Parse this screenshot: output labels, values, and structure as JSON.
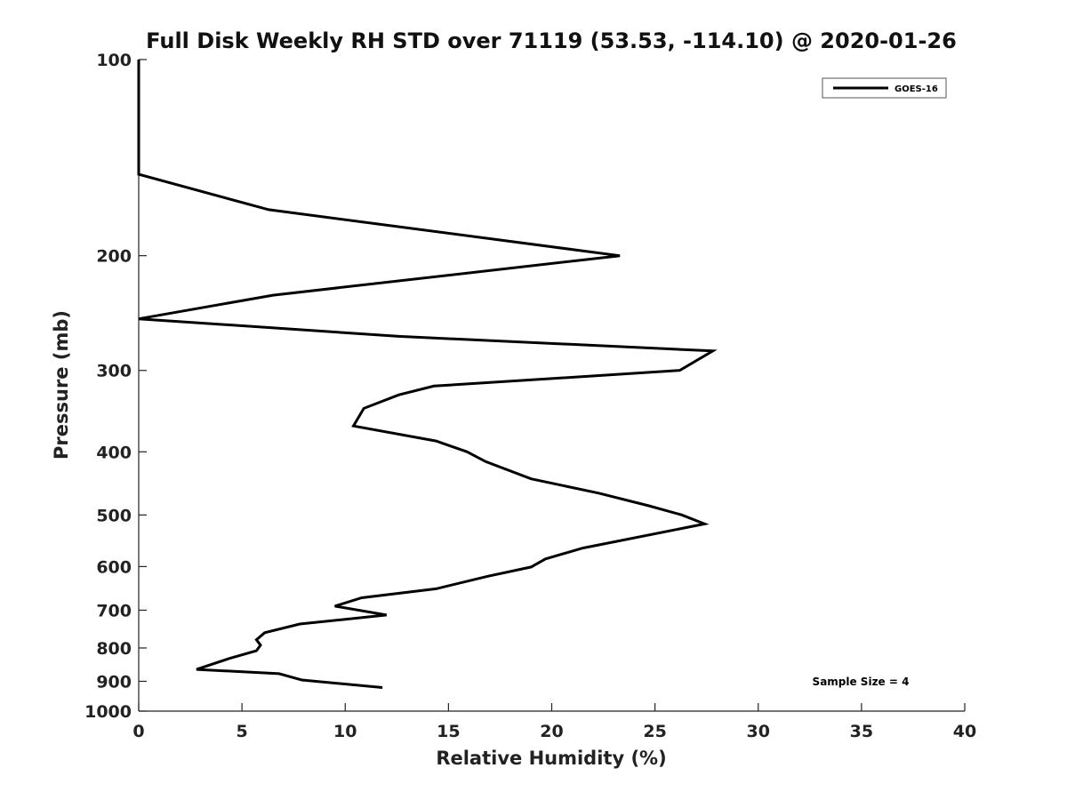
{
  "chart_data": {
    "type": "line",
    "title": "Full Disk Weekly RH STD over 71119 (53.53, -114.10) @ 2020-01-26",
    "xlabel": "Relative Humidity (%)",
    "ylabel": "Pressure (mb)",
    "xlim": [
      0,
      40
    ],
    "ylim": [
      100,
      1000
    ],
    "y_scale": "log",
    "y_reversed": true,
    "x_ticks": [
      "0",
      "5",
      "10",
      "15",
      "20",
      "25",
      "30",
      "35",
      "40"
    ],
    "y_ticks": [
      "100",
      "200",
      "300",
      "400",
      "500",
      "600",
      "700",
      "800",
      "900",
      "1000"
    ],
    "grid": false,
    "legend_position": "top-right",
    "annotation": "Sample Size = 4",
    "series": [
      {
        "name": "GOES-16",
        "color": "#000000",
        "points": [
          [
            0,
            100
          ],
          [
            0,
            150
          ],
          [
            6.3,
            170
          ],
          [
            23.3,
            200
          ],
          [
            6.5,
            230
          ],
          [
            0,
            250
          ],
          [
            12.6,
            266
          ],
          [
            27.8,
            280
          ],
          [
            26.2,
            300
          ],
          [
            14.3,
            317
          ],
          [
            12.6,
            327
          ],
          [
            10.9,
            343
          ],
          [
            10.4,
            365
          ],
          [
            14.4,
            385
          ],
          [
            15.9,
            400
          ],
          [
            16.8,
            414
          ],
          [
            19.0,
            440
          ],
          [
            22.3,
            463
          ],
          [
            24.7,
            484
          ],
          [
            26.3,
            500
          ],
          [
            27.4,
            516
          ],
          [
            21.5,
            562
          ],
          [
            19.7,
            584
          ],
          [
            19.0,
            601
          ],
          [
            16.9,
            621
          ],
          [
            14.4,
            649
          ],
          [
            10.8,
            670
          ],
          [
            9.5,
            690
          ],
          [
            12.0,
            712
          ],
          [
            7.8,
            735
          ],
          [
            6.1,
            758
          ],
          [
            5.7,
            777
          ],
          [
            5.9,
            792
          ],
          [
            5.7,
            808
          ],
          [
            4.4,
            830
          ],
          [
            2.8,
            863
          ],
          [
            6.8,
            876
          ],
          [
            7.9,
            896
          ],
          [
            11.8,
            920
          ]
        ]
      }
    ]
  }
}
